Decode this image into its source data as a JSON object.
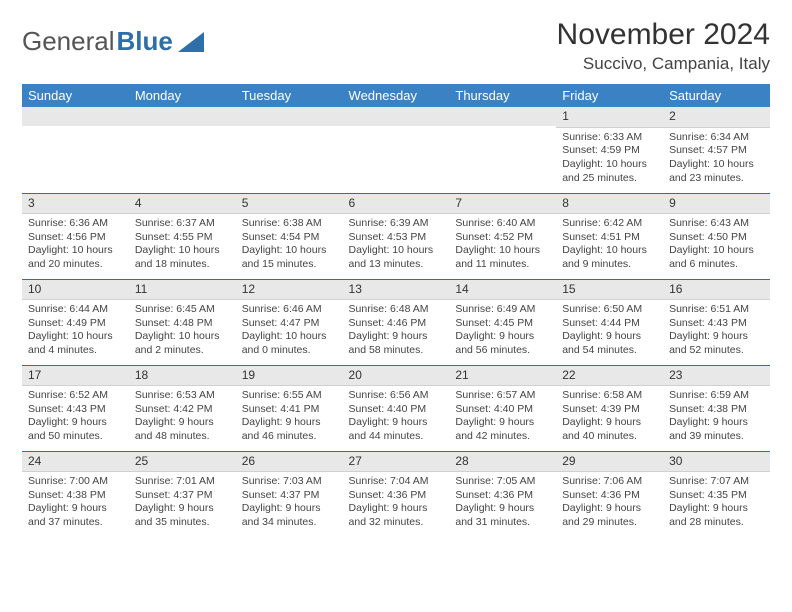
{
  "logo": {
    "text1": "General",
    "text2": "Blue"
  },
  "title": "November 2024",
  "location": "Succivo, Campania, Italy",
  "colors": {
    "header_bg": "#3a82c4",
    "header_text": "#ffffff",
    "daynum_bg": "#e8e8e8",
    "border": "#2f6fa8",
    "logo_blue": "#2f6fa8",
    "body_text": "#444444"
  },
  "typography": {
    "title_fontsize": 30,
    "location_fontsize": 17,
    "header_fontsize": 13,
    "cell_fontsize": 10.5,
    "daynum_fontsize": 12
  },
  "day_headers": [
    "Sunday",
    "Monday",
    "Tuesday",
    "Wednesday",
    "Thursday",
    "Friday",
    "Saturday"
  ],
  "weeks": [
    [
      null,
      null,
      null,
      null,
      null,
      {
        "n": "1",
        "sunrise": "Sunrise: 6:33 AM",
        "sunset": "Sunset: 4:59 PM",
        "daylight": "Daylight: 10 hours and 25 minutes."
      },
      {
        "n": "2",
        "sunrise": "Sunrise: 6:34 AM",
        "sunset": "Sunset: 4:57 PM",
        "daylight": "Daylight: 10 hours and 23 minutes."
      }
    ],
    [
      {
        "n": "3",
        "sunrise": "Sunrise: 6:36 AM",
        "sunset": "Sunset: 4:56 PM",
        "daylight": "Daylight: 10 hours and 20 minutes."
      },
      {
        "n": "4",
        "sunrise": "Sunrise: 6:37 AM",
        "sunset": "Sunset: 4:55 PM",
        "daylight": "Daylight: 10 hours and 18 minutes."
      },
      {
        "n": "5",
        "sunrise": "Sunrise: 6:38 AM",
        "sunset": "Sunset: 4:54 PM",
        "daylight": "Daylight: 10 hours and 15 minutes."
      },
      {
        "n": "6",
        "sunrise": "Sunrise: 6:39 AM",
        "sunset": "Sunset: 4:53 PM",
        "daylight": "Daylight: 10 hours and 13 minutes."
      },
      {
        "n": "7",
        "sunrise": "Sunrise: 6:40 AM",
        "sunset": "Sunset: 4:52 PM",
        "daylight": "Daylight: 10 hours and 11 minutes."
      },
      {
        "n": "8",
        "sunrise": "Sunrise: 6:42 AM",
        "sunset": "Sunset: 4:51 PM",
        "daylight": "Daylight: 10 hours and 9 minutes."
      },
      {
        "n": "9",
        "sunrise": "Sunrise: 6:43 AM",
        "sunset": "Sunset: 4:50 PM",
        "daylight": "Daylight: 10 hours and 6 minutes."
      }
    ],
    [
      {
        "n": "10",
        "sunrise": "Sunrise: 6:44 AM",
        "sunset": "Sunset: 4:49 PM",
        "daylight": "Daylight: 10 hours and 4 minutes."
      },
      {
        "n": "11",
        "sunrise": "Sunrise: 6:45 AM",
        "sunset": "Sunset: 4:48 PM",
        "daylight": "Daylight: 10 hours and 2 minutes."
      },
      {
        "n": "12",
        "sunrise": "Sunrise: 6:46 AM",
        "sunset": "Sunset: 4:47 PM",
        "daylight": "Daylight: 10 hours and 0 minutes."
      },
      {
        "n": "13",
        "sunrise": "Sunrise: 6:48 AM",
        "sunset": "Sunset: 4:46 PM",
        "daylight": "Daylight: 9 hours and 58 minutes."
      },
      {
        "n": "14",
        "sunrise": "Sunrise: 6:49 AM",
        "sunset": "Sunset: 4:45 PM",
        "daylight": "Daylight: 9 hours and 56 minutes."
      },
      {
        "n": "15",
        "sunrise": "Sunrise: 6:50 AM",
        "sunset": "Sunset: 4:44 PM",
        "daylight": "Daylight: 9 hours and 54 minutes."
      },
      {
        "n": "16",
        "sunrise": "Sunrise: 6:51 AM",
        "sunset": "Sunset: 4:43 PM",
        "daylight": "Daylight: 9 hours and 52 minutes."
      }
    ],
    [
      {
        "n": "17",
        "sunrise": "Sunrise: 6:52 AM",
        "sunset": "Sunset: 4:43 PM",
        "daylight": "Daylight: 9 hours and 50 minutes."
      },
      {
        "n": "18",
        "sunrise": "Sunrise: 6:53 AM",
        "sunset": "Sunset: 4:42 PM",
        "daylight": "Daylight: 9 hours and 48 minutes."
      },
      {
        "n": "19",
        "sunrise": "Sunrise: 6:55 AM",
        "sunset": "Sunset: 4:41 PM",
        "daylight": "Daylight: 9 hours and 46 minutes."
      },
      {
        "n": "20",
        "sunrise": "Sunrise: 6:56 AM",
        "sunset": "Sunset: 4:40 PM",
        "daylight": "Daylight: 9 hours and 44 minutes."
      },
      {
        "n": "21",
        "sunrise": "Sunrise: 6:57 AM",
        "sunset": "Sunset: 4:40 PM",
        "daylight": "Daylight: 9 hours and 42 minutes."
      },
      {
        "n": "22",
        "sunrise": "Sunrise: 6:58 AM",
        "sunset": "Sunset: 4:39 PM",
        "daylight": "Daylight: 9 hours and 40 minutes."
      },
      {
        "n": "23",
        "sunrise": "Sunrise: 6:59 AM",
        "sunset": "Sunset: 4:38 PM",
        "daylight": "Daylight: 9 hours and 39 minutes."
      }
    ],
    [
      {
        "n": "24",
        "sunrise": "Sunrise: 7:00 AM",
        "sunset": "Sunset: 4:38 PM",
        "daylight": "Daylight: 9 hours and 37 minutes."
      },
      {
        "n": "25",
        "sunrise": "Sunrise: 7:01 AM",
        "sunset": "Sunset: 4:37 PM",
        "daylight": "Daylight: 9 hours and 35 minutes."
      },
      {
        "n": "26",
        "sunrise": "Sunrise: 7:03 AM",
        "sunset": "Sunset: 4:37 PM",
        "daylight": "Daylight: 9 hours and 34 minutes."
      },
      {
        "n": "27",
        "sunrise": "Sunrise: 7:04 AM",
        "sunset": "Sunset: 4:36 PM",
        "daylight": "Daylight: 9 hours and 32 minutes."
      },
      {
        "n": "28",
        "sunrise": "Sunrise: 7:05 AM",
        "sunset": "Sunset: 4:36 PM",
        "daylight": "Daylight: 9 hours and 31 minutes."
      },
      {
        "n": "29",
        "sunrise": "Sunrise: 7:06 AM",
        "sunset": "Sunset: 4:36 PM",
        "daylight": "Daylight: 9 hours and 29 minutes."
      },
      {
        "n": "30",
        "sunrise": "Sunrise: 7:07 AM",
        "sunset": "Sunset: 4:35 PM",
        "daylight": "Daylight: 9 hours and 28 minutes."
      }
    ]
  ]
}
